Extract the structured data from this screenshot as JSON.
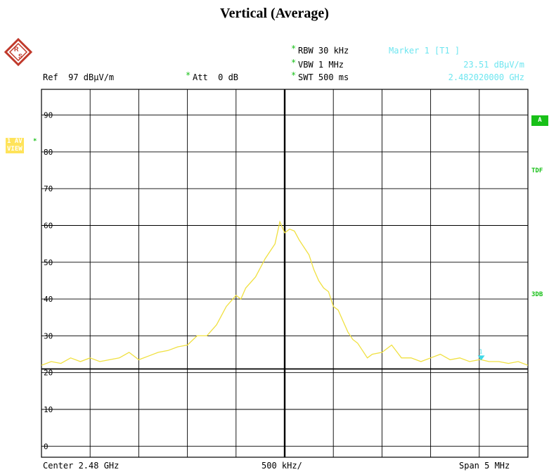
{
  "page": {
    "title": "Vertical (Average)"
  },
  "header": {
    "rbw": "RBW 30 kHz",
    "vbw": "VBW 1 MHz",
    "swt": "SWT 500 ms",
    "ref": "Ref  97 dBµV/m",
    "att": "Att  0 dB",
    "marker_title": "Marker 1 [T1 ]",
    "marker_level": "23.51 dBµV/m",
    "marker_freq": "2.482020000 GHz",
    "star": "*"
  },
  "side": {
    "trace_label_line1": "1 AV",
    "trace_label_line2": "VIEW",
    "trace_star": "*",
    "tag_a": "A",
    "tag_tdf": "TDF",
    "tag_3db": "3DB"
  },
  "footer": {
    "center": "Center 2.48 GHz",
    "div": "500 kHz/",
    "span": "Span 5 MHz"
  },
  "colors": {
    "trace": "#f0e040",
    "marker": "#3fd8e8",
    "grid": "#000000",
    "label_cyan": "#6fe6f0",
    "label_green": "#18c018"
  },
  "chart_data": {
    "type": "line",
    "x_unit": "MHz",
    "y_unit": "dBµV/m",
    "xlim": [
      2477.5,
      2482.5
    ],
    "ylim": [
      -3,
      97
    ],
    "center_ghz": 2.48,
    "y_tick_labels": [
      "90",
      "80",
      "70",
      "60",
      "50",
      "40",
      "30",
      "20",
      "10",
      "0"
    ],
    "y_tick_values": [
      90,
      80,
      70,
      60,
      50,
      40,
      30,
      20,
      10,
      0
    ],
    "grid": true,
    "reference_line_y": 21,
    "marker": {
      "label": "1",
      "x": 2482.02,
      "y": 23.51
    },
    "series": [
      {
        "x": [
          2477.5,
          2477.6,
          2477.7,
          2477.8,
          2477.9,
          2478.0,
          2478.1,
          2478.2,
          2478.3,
          2478.4,
          2478.5,
          2478.6,
          2478.7,
          2478.8,
          2478.9,
          2479.0,
          2479.1,
          2479.2,
          2479.3,
          2479.4,
          2479.5,
          2479.55,
          2479.6,
          2479.7,
          2479.8,
          2479.9,
          2479.95,
          2480.0,
          2480.05,
          2480.1,
          2480.15,
          2480.2,
          2480.25,
          2480.3,
          2480.35,
          2480.4,
          2480.45,
          2480.5,
          2480.55,
          2480.6,
          2480.65,
          2480.7,
          2480.75,
          2480.8,
          2480.85,
          2480.9,
          2481.0,
          2481.1,
          2481.2,
          2481.3,
          2481.4,
          2481.5,
          2481.6,
          2481.7,
          2481.8,
          2481.9,
          2482.0,
          2482.02,
          2482.1,
          2482.2,
          2482.3,
          2482.4,
          2482.5
        ],
        "y": [
          22,
          23,
          22.5,
          24,
          23,
          24,
          23,
          23.5,
          24,
          25.5,
          23.5,
          24.5,
          25.5,
          26,
          27,
          27.5,
          30,
          30,
          33,
          38,
          41,
          40,
          43,
          46,
          51,
          55,
          61,
          58,
          59,
          58.5,
          56,
          54,
          52,
          48,
          45,
          43,
          42,
          38,
          37,
          34,
          31,
          29,
          28,
          26,
          24,
          25,
          25.5,
          27.5,
          24,
          24,
          23,
          24,
          25,
          23.5,
          24,
          23,
          23.5,
          23.5,
          23,
          23,
          22.5,
          23,
          22
        ]
      }
    ]
  }
}
